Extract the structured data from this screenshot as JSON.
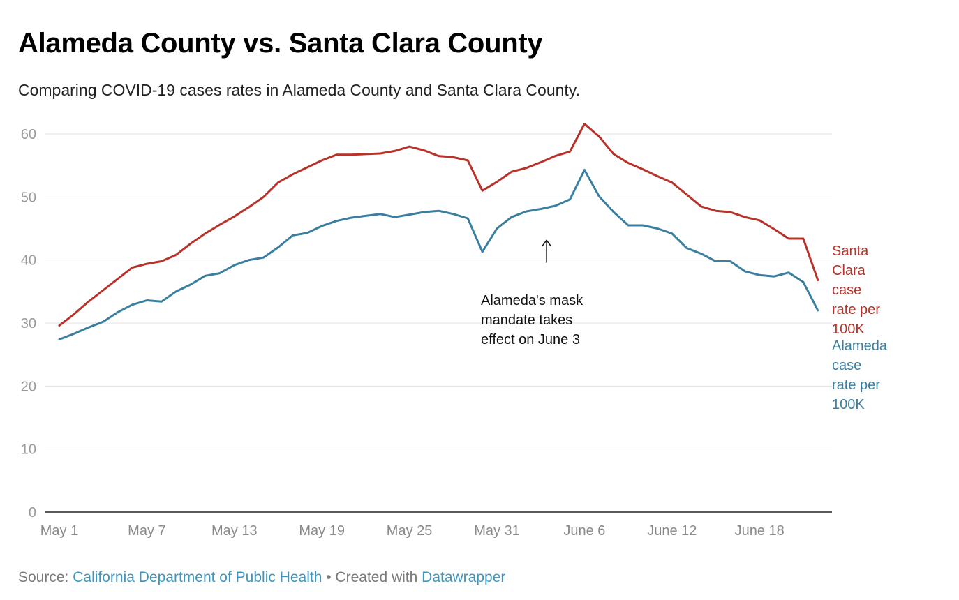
{
  "header": {
    "title": "Alameda County vs. Santa Clara County",
    "subtitle": "Comparing COVID-19 cases rates in Alameda County and Santa Clara County."
  },
  "footer": {
    "source_prefix": "Source: ",
    "source_link": "California Department of Public Health",
    "separator": " • Created with ",
    "tool_link": "Datawrapper"
  },
  "colors": {
    "santa_clara": "#b83229",
    "alameda": "#3a7fa0",
    "grid": "#e2e2e2",
    "axis": "#222222",
    "link": "#3d97bf"
  },
  "chart_data": {
    "type": "line",
    "title": "Alameda County vs. Santa Clara County",
    "xlabel": "",
    "ylabel": "",
    "ylim": [
      0,
      60
    ],
    "yticks": [
      0,
      10,
      20,
      30,
      40,
      50,
      60
    ],
    "grid": true,
    "x_start": "May 1",
    "x_tick_labels": [
      {
        "day_index": 0,
        "label": "May 1"
      },
      {
        "day_index": 6,
        "label": "May 7"
      },
      {
        "day_index": 12,
        "label": "May 13"
      },
      {
        "day_index": 18,
        "label": "May 19"
      },
      {
        "day_index": 24,
        "label": "May 25"
      },
      {
        "day_index": 30,
        "label": "May 31"
      },
      {
        "day_index": 36,
        "label": "June 6"
      },
      {
        "day_index": 42,
        "label": "June 12"
      },
      {
        "day_index": 48,
        "label": "June 18"
      }
    ],
    "x_range": [
      0,
      52.5
    ],
    "series": [
      {
        "name": "Santa Clara case rate per 100K",
        "label_lines": [
          "Santa",
          "Clara",
          "case",
          "rate per",
          "100K"
        ],
        "color": "#b83229",
        "values": [
          29.6,
          31.4,
          33.4,
          35.2,
          37.0,
          38.8,
          39.4,
          39.8,
          40.8,
          42.6,
          44.2,
          45.6,
          46.9,
          48.4,
          50.0,
          52.3,
          53.6,
          54.7,
          55.8,
          56.7,
          56.7,
          56.8,
          56.9,
          57.3,
          58.0,
          57.4,
          56.5,
          56.3,
          55.8,
          51.0,
          52.4,
          54.0,
          54.6,
          55.5,
          56.5,
          57.2,
          61.6,
          59.6,
          56.8,
          55.4,
          54.4,
          53.3,
          52.3,
          50.4,
          48.5,
          47.8,
          47.6,
          46.8,
          46.3,
          44.9,
          43.4,
          43.4,
          36.8
        ]
      },
      {
        "name": "Alameda case rate per 100K",
        "label_lines": [
          "Alameda",
          "case",
          "rate per",
          "100K"
        ],
        "color": "#3a7fa0",
        "values": [
          27.4,
          28.3,
          29.3,
          30.2,
          31.7,
          32.9,
          33.6,
          33.4,
          35.0,
          36.1,
          37.5,
          37.9,
          39.2,
          40.0,
          40.4,
          42.0,
          43.9,
          44.3,
          45.4,
          46.2,
          46.7,
          47.0,
          47.3,
          46.8,
          47.2,
          47.6,
          47.8,
          47.3,
          46.6,
          41.3,
          45.0,
          46.8,
          47.7,
          48.1,
          48.6,
          49.6,
          54.3,
          50.1,
          47.6,
          45.5,
          45.5,
          45.0,
          44.2,
          41.9,
          41.0,
          39.8,
          39.8,
          38.2,
          37.6,
          37.4,
          38.0,
          36.5,
          32.0
        ]
      }
    ],
    "annotations": [
      {
        "text_lines": [
          "Alameda's mask",
          "mandate takes",
          "effect on June 3"
        ],
        "arrow_day_index": 33.4,
        "arrow_value_from": 42.0,
        "arrow_value_to": 43.9
      }
    ]
  }
}
